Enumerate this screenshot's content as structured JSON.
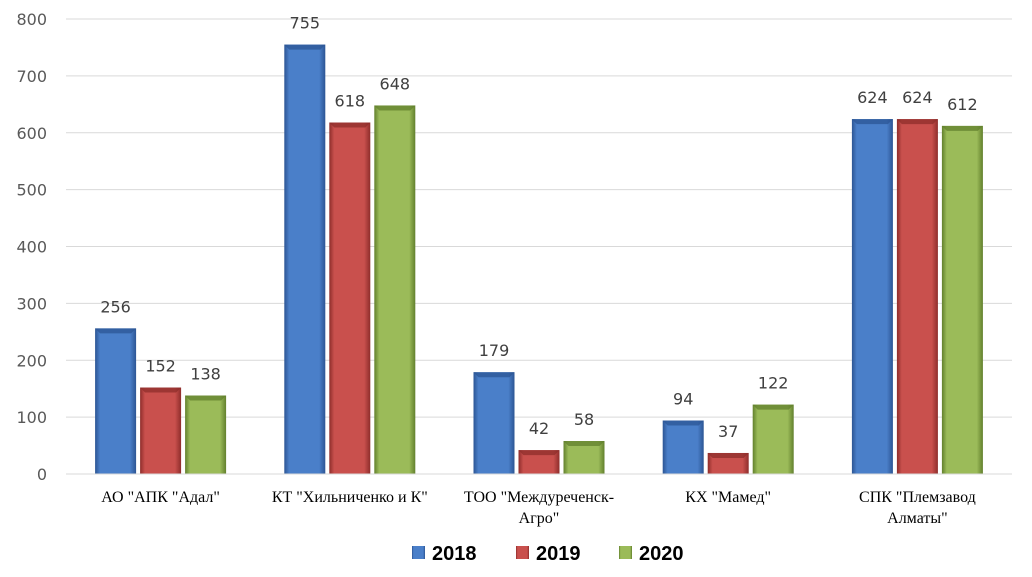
{
  "chart_data": {
    "type": "bar",
    "categories": [
      [
        "АО \"АПК \"Адал\""
      ],
      [
        "КТ \"Хильниченко и К\""
      ],
      [
        "ТОО \"Междуреченск-",
        "Агро\""
      ],
      [
        "КХ \"Мамед\""
      ],
      [
        "СПК \"Племзавод",
        "Алматы\""
      ]
    ],
    "series": [
      {
        "name": "2018",
        "values": [
          256,
          755,
          179,
          94,
          624
        ],
        "color": "#4a7fc9",
        "dark": "#2c5594"
      },
      {
        "name": "2019",
        "values": [
          152,
          618,
          42,
          37,
          624
        ],
        "color": "#c9504d",
        "dark": "#8e2d2b"
      },
      {
        "name": "2020",
        "values": [
          138,
          648,
          58,
          122,
          612
        ],
        "color": "#9bbb59",
        "dark": "#62802d"
      }
    ],
    "yticks": [
      0,
      100,
      200,
      300,
      400,
      500,
      600,
      700,
      800
    ],
    "ylim": [
      0,
      800
    ],
    "grid": true,
    "legend_position": "bottom"
  }
}
